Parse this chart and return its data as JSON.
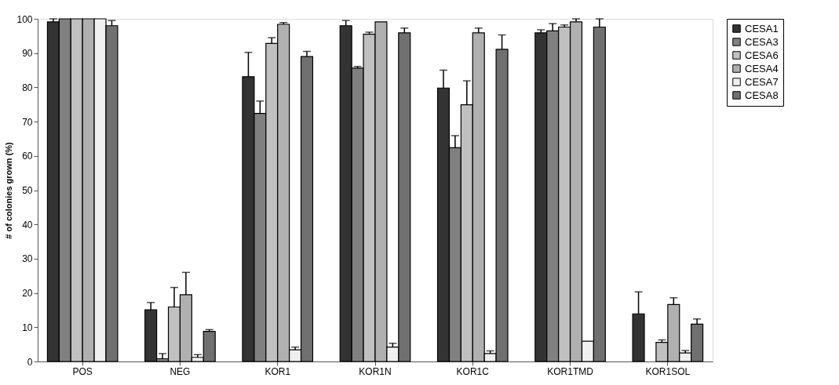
{
  "chart_data": {
    "type": "bar",
    "ylabel": "# of colonies grown (%)",
    "categories": [
      "POS",
      "NEG",
      "KOR1",
      "KOR1N",
      "KOR1C",
      "KOR1TMD",
      "KOR1SOL"
    ],
    "series": [
      {
        "name": "CESA1",
        "color": "#333333",
        "values": [
          99.1,
          15.1,
          83.1,
          98.0,
          79.8,
          95.9,
          13.9
        ],
        "errors": [
          [
            99.1,
            100
          ],
          [
            15.1,
            17.2
          ],
          [
            83.1,
            90.2
          ],
          [
            98.0,
            99.5
          ],
          [
            79.8,
            85.0
          ],
          [
            95.9,
            96.8
          ],
          [
            13.9,
            20.3
          ]
        ]
      },
      {
        "name": "CESA3",
        "color": "#808080",
        "values": [
          100,
          0.8,
          72.4,
          85.6,
          62.4,
          96.5,
          null
        ],
        "errors": [
          null,
          [
            0.8,
            2.3
          ],
          [
            72.4,
            76.0
          ],
          [
            85.6,
            86.1
          ],
          [
            62.4,
            65.9
          ],
          [
            96.5,
            98.6
          ],
          null
        ]
      },
      {
        "name": "CESA6",
        "color": "#c0c0c0",
        "values": [
          100,
          15.9,
          92.8,
          95.5,
          74.9,
          97.6,
          5.6
        ],
        "errors": [
          null,
          [
            15.9,
            21.6
          ],
          [
            92.8,
            94.5
          ],
          [
            95.5,
            96.1
          ],
          [
            74.9,
            81.9
          ],
          [
            97.6,
            98.2
          ],
          [
            5.6,
            6.3
          ]
        ]
      },
      {
        "name": "CESA4",
        "color": "#b0b0b0",
        "values": [
          100,
          19.5,
          98.4,
          99.1,
          95.9,
          99.1,
          16.6
        ],
        "errors": [
          null,
          [
            19.5,
            26.0
          ],
          [
            98.4,
            98.9
          ],
          null,
          [
            95.9,
            97.3
          ],
          [
            99.1,
            100
          ],
          [
            16.6,
            18.6
          ]
        ]
      },
      {
        "name": "CESA7",
        "color": "#f0f0f0",
        "values": [
          100,
          1.2,
          3.4,
          4.2,
          2.3,
          5.9,
          2.5
        ],
        "errors": [
          null,
          [
            1.2,
            2.0
          ],
          [
            3.4,
            4.2
          ],
          [
            4.2,
            5.3
          ],
          [
            2.3,
            3.1
          ],
          null,
          [
            2.5,
            3.2
          ]
        ]
      },
      {
        "name": "CESA8",
        "color": "#707070",
        "values": [
          98.0,
          8.8,
          89.0,
          95.9,
          91.1,
          97.6,
          10.9
        ],
        "errors": [
          [
            98.0,
            99.5
          ],
          [
            8.8,
            9.3
          ],
          [
            89.0,
            90.5
          ],
          [
            95.9,
            97.3
          ],
          [
            91.1,
            95.3
          ],
          [
            97.6,
            100
          ],
          [
            10.9,
            12.4
          ]
        ]
      }
    ],
    "ylim": [
      0,
      100
    ],
    "yticks": [
      0,
      10,
      20,
      30,
      40,
      50,
      60,
      70,
      80,
      90,
      100
    ],
    "grid": false,
    "legend": "right"
  }
}
